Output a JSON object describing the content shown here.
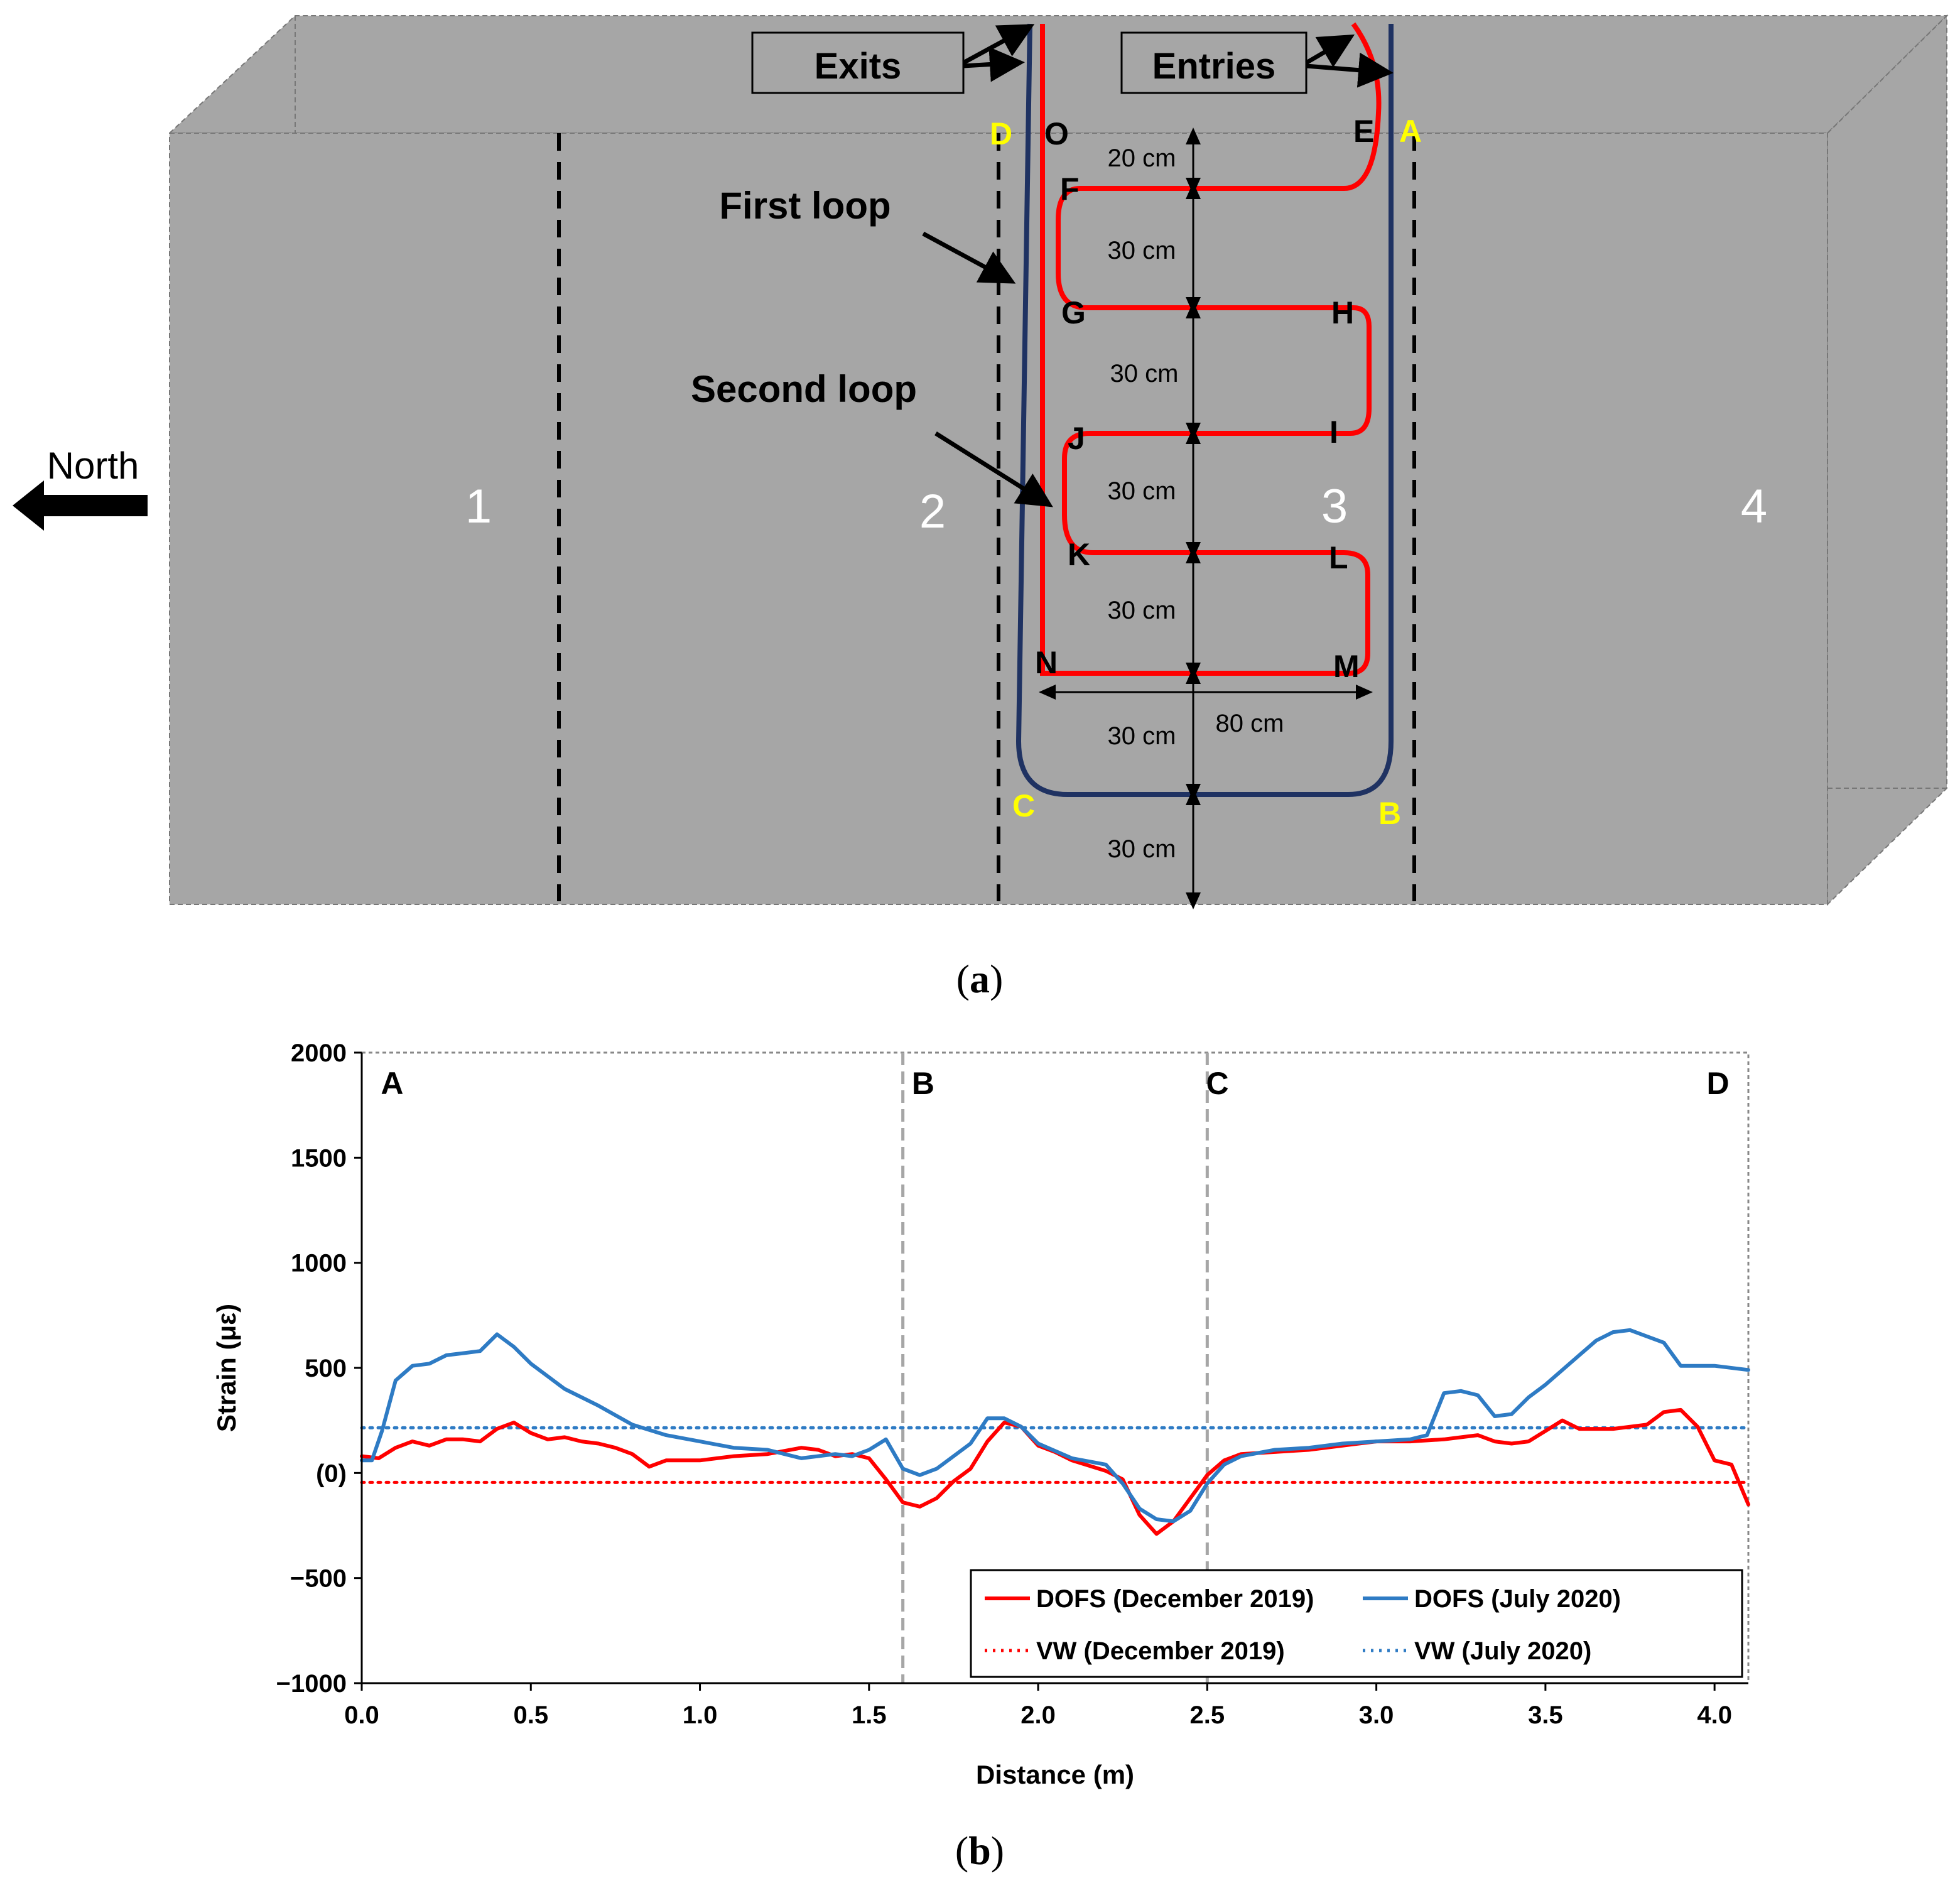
{
  "colors": {
    "slab_fill": "#a6a6a6",
    "red_fiber": "#ff0000",
    "navy_fiber": "#1f3262",
    "yellow_label": "#ffff00",
    "dofs_dec": "#ff0000",
    "dofs_jul": "#2e7bc4",
    "grid_vline": "#a6a6a6"
  },
  "panel_a": {
    "caption_open": "(",
    "caption_letter": "a",
    "caption_close": ")",
    "north_label": "North",
    "zones": [
      "1",
      "2",
      "3",
      "4"
    ],
    "exits_label": "Exits",
    "entries_label": "Entries",
    "first_loop_label": "First loop",
    "second_loop_label": "Second loop",
    "point_labels_yellow": {
      "A": "A",
      "B": "B",
      "C": "C",
      "D": "D"
    },
    "point_labels_black": {
      "E": "E",
      "F": "F",
      "G": "G",
      "H": "H",
      "I": "I",
      "J": "J",
      "K": "K",
      "L": "L",
      "M": "M",
      "N": "N",
      "O": "O"
    },
    "dimensions": {
      "d1": "20 cm",
      "d2": "30 cm",
      "d3": "30 cm",
      "d4": "30 cm",
      "d5": "30 cm",
      "d6": "30 cm",
      "d7": "30 cm",
      "width": "80 cm"
    }
  },
  "panel_b": {
    "caption_open": "(",
    "caption_letter": "b",
    "caption_close": ")"
  },
  "chart_data": {
    "type": "line",
    "title": "",
    "xlabel": "Distance (m)",
    "ylabel": "Strain (με)",
    "xlim": [
      0,
      4.1
    ],
    "ylim": [
      -1000,
      2000
    ],
    "x_ticks": [
      0.0,
      0.5,
      1.0,
      1.5,
      2.0,
      2.5,
      3.0,
      3.5,
      4.0
    ],
    "x_tick_labels": [
      "0.0",
      "0.5",
      "1.0",
      "1.5",
      "2.0",
      "2.5",
      "3.0",
      "3.5",
      "4.0"
    ],
    "y_ticks": [
      2000,
      1500,
      1000,
      500,
      0,
      -500,
      -1000
    ],
    "y_tick_labels": [
      "2000",
      "1500",
      "1000",
      "500",
      "(0)",
      "−500",
      "−1000"
    ],
    "section_lines": [
      1.6,
      2.5
    ],
    "section_labels": [
      {
        "x": 0.09,
        "label": "A"
      },
      {
        "x": 1.66,
        "label": "B"
      },
      {
        "x": 2.53,
        "label": "C"
      },
      {
        "x": 4.01,
        "label": "D"
      }
    ],
    "series": [
      {
        "name": "DOFS (December 2019)",
        "style": "solid",
        "color": "#ff0000",
        "x": [
          0.0,
          0.05,
          0.1,
          0.15,
          0.2,
          0.25,
          0.3,
          0.35,
          0.4,
          0.45,
          0.5,
          0.55,
          0.6,
          0.65,
          0.7,
          0.75,
          0.8,
          0.85,
          0.9,
          1.0,
          1.1,
          1.2,
          1.3,
          1.35,
          1.4,
          1.45,
          1.5,
          1.55,
          1.6,
          1.65,
          1.7,
          1.75,
          1.8,
          1.85,
          1.9,
          1.95,
          2.0,
          2.05,
          2.1,
          2.2,
          2.25,
          2.3,
          2.35,
          2.4,
          2.45,
          2.5,
          2.55,
          2.6,
          2.7,
          2.8,
          2.9,
          3.0,
          3.1,
          3.2,
          3.3,
          3.35,
          3.4,
          3.45,
          3.5,
          3.55,
          3.6,
          3.7,
          3.8,
          3.85,
          3.9,
          3.95,
          4.0,
          4.05,
          4.1
        ],
        "values": [
          80,
          70,
          120,
          150,
          130,
          160,
          160,
          150,
          210,
          240,
          190,
          160,
          170,
          150,
          140,
          120,
          90,
          30,
          60,
          60,
          80,
          90,
          120,
          110,
          80,
          90,
          70,
          -30,
          -140,
          -160,
          -120,
          -40,
          20,
          150,
          240,
          220,
          130,
          100,
          60,
          10,
          -30,
          -200,
          -290,
          -230,
          -120,
          -10,
          60,
          90,
          100,
          110,
          130,
          150,
          150,
          160,
          180,
          150,
          140,
          150,
          200,
          250,
          210,
          210,
          230,
          290,
          300,
          220,
          60,
          40,
          -150
        ]
      },
      {
        "name": "DOFS (July 2020)",
        "style": "solid",
        "color": "#2e7bc4",
        "x": [
          0.0,
          0.03,
          0.06,
          0.1,
          0.15,
          0.2,
          0.25,
          0.3,
          0.35,
          0.4,
          0.45,
          0.5,
          0.55,
          0.6,
          0.7,
          0.8,
          0.9,
          1.0,
          1.1,
          1.2,
          1.3,
          1.4,
          1.45,
          1.5,
          1.55,
          1.6,
          1.65,
          1.7,
          1.75,
          1.8,
          1.85,
          1.9,
          1.95,
          2.0,
          2.1,
          2.2,
          2.25,
          2.3,
          2.35,
          2.4,
          2.45,
          2.5,
          2.55,
          2.6,
          2.7,
          2.8,
          2.9,
          3.0,
          3.1,
          3.15,
          3.2,
          3.25,
          3.3,
          3.35,
          3.4,
          3.45,
          3.5,
          3.6,
          3.65,
          3.7,
          3.75,
          3.8,
          3.85,
          3.9,
          4.0,
          4.1
        ],
        "values": [
          60,
          60,
          200,
          440,
          510,
          520,
          560,
          570,
          580,
          660,
          600,
          520,
          460,
          400,
          320,
          230,
          180,
          150,
          120,
          110,
          70,
          90,
          80,
          110,
          160,
          20,
          -10,
          20,
          80,
          140,
          260,
          260,
          220,
          140,
          70,
          40,
          -50,
          -170,
          -220,
          -230,
          -180,
          -50,
          40,
          80,
          110,
          120,
          140,
          150,
          160,
          180,
          380,
          390,
          370,
          270,
          280,
          360,
          420,
          560,
          630,
          670,
          680,
          650,
          620,
          510,
          510,
          490
        ]
      },
      {
        "name": "VW (December 2019)",
        "style": "dotted",
        "color": "#ff0000",
        "x": [
          0.0,
          4.1
        ],
        "values": [
          -45,
          -45
        ]
      },
      {
        "name": "VW (July 2020)",
        "style": "dotted",
        "color": "#2e7bc4",
        "x": [
          0.0,
          4.1
        ],
        "values": [
          215,
          215
        ]
      }
    ],
    "legend_position": "bottom-right"
  }
}
